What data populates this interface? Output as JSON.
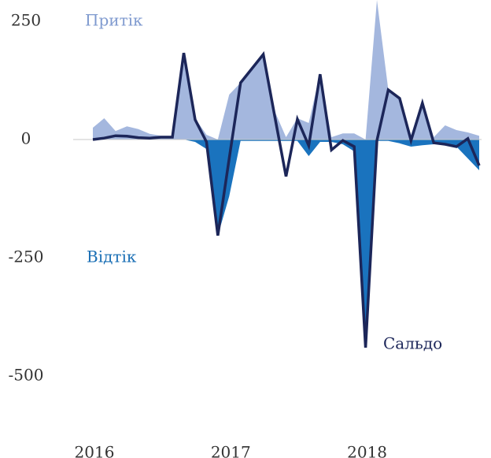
{
  "chart_data": {
    "type": "area",
    "categories": [
      "2016",
      null,
      null,
      null,
      null,
      null,
      null,
      null,
      null,
      null,
      null,
      null,
      "2017",
      null,
      null,
      null,
      null,
      null,
      null,
      null,
      null,
      null,
      null,
      null,
      "2018",
      null,
      null,
      null,
      null,
      null,
      null,
      null,
      null,
      null,
      null
    ],
    "series": [
      {
        "name": "Притік",
        "color": "#a4b7de",
        "label_color": "#7f9acf",
        "values": [
          25,
          45,
          18,
          28,
          22,
          12,
          8,
          8,
          183,
          45,
          10,
          0,
          95,
          120,
          150,
          182,
          60,
          5,
          45,
          35,
          140,
          5,
          13,
          13,
          0,
          295,
          105,
          90,
          10,
          85,
          5,
          30,
          20,
          15,
          8
        ]
      },
      {
        "name": "Відтік",
        "color": "#1a73be",
        "label_color": "#1a6fb5",
        "values": [
          0,
          0,
          0,
          0,
          0,
          0,
          0,
          0,
          0,
          -5,
          -20,
          -203,
          -120,
          -3,
          -3,
          -3,
          -3,
          -3,
          -3,
          -35,
          -5,
          -5,
          -10,
          -25,
          -440,
          -3,
          -3,
          -8,
          -15,
          -12,
          -10,
          -10,
          -15,
          -40,
          -65
        ]
      },
      {
        "name": "Сальдо",
        "color": "#1c2659",
        "label_color": "#1c2659",
        "type": "line",
        "values": [
          0,
          3,
          8,
          7,
          4,
          3,
          5,
          5,
          183,
          42,
          -5,
          -203,
          -40,
          120,
          150,
          180,
          50,
          -78,
          43,
          -13,
          138,
          -22,
          -2,
          -15,
          -440,
          -2,
          105,
          87,
          -2,
          77,
          -7,
          -10,
          -15,
          2,
          -55
        ]
      }
    ],
    "ylim": [
      -600,
      300
    ],
    "yticks": [
      -500,
      -250,
      0,
      250
    ]
  }
}
